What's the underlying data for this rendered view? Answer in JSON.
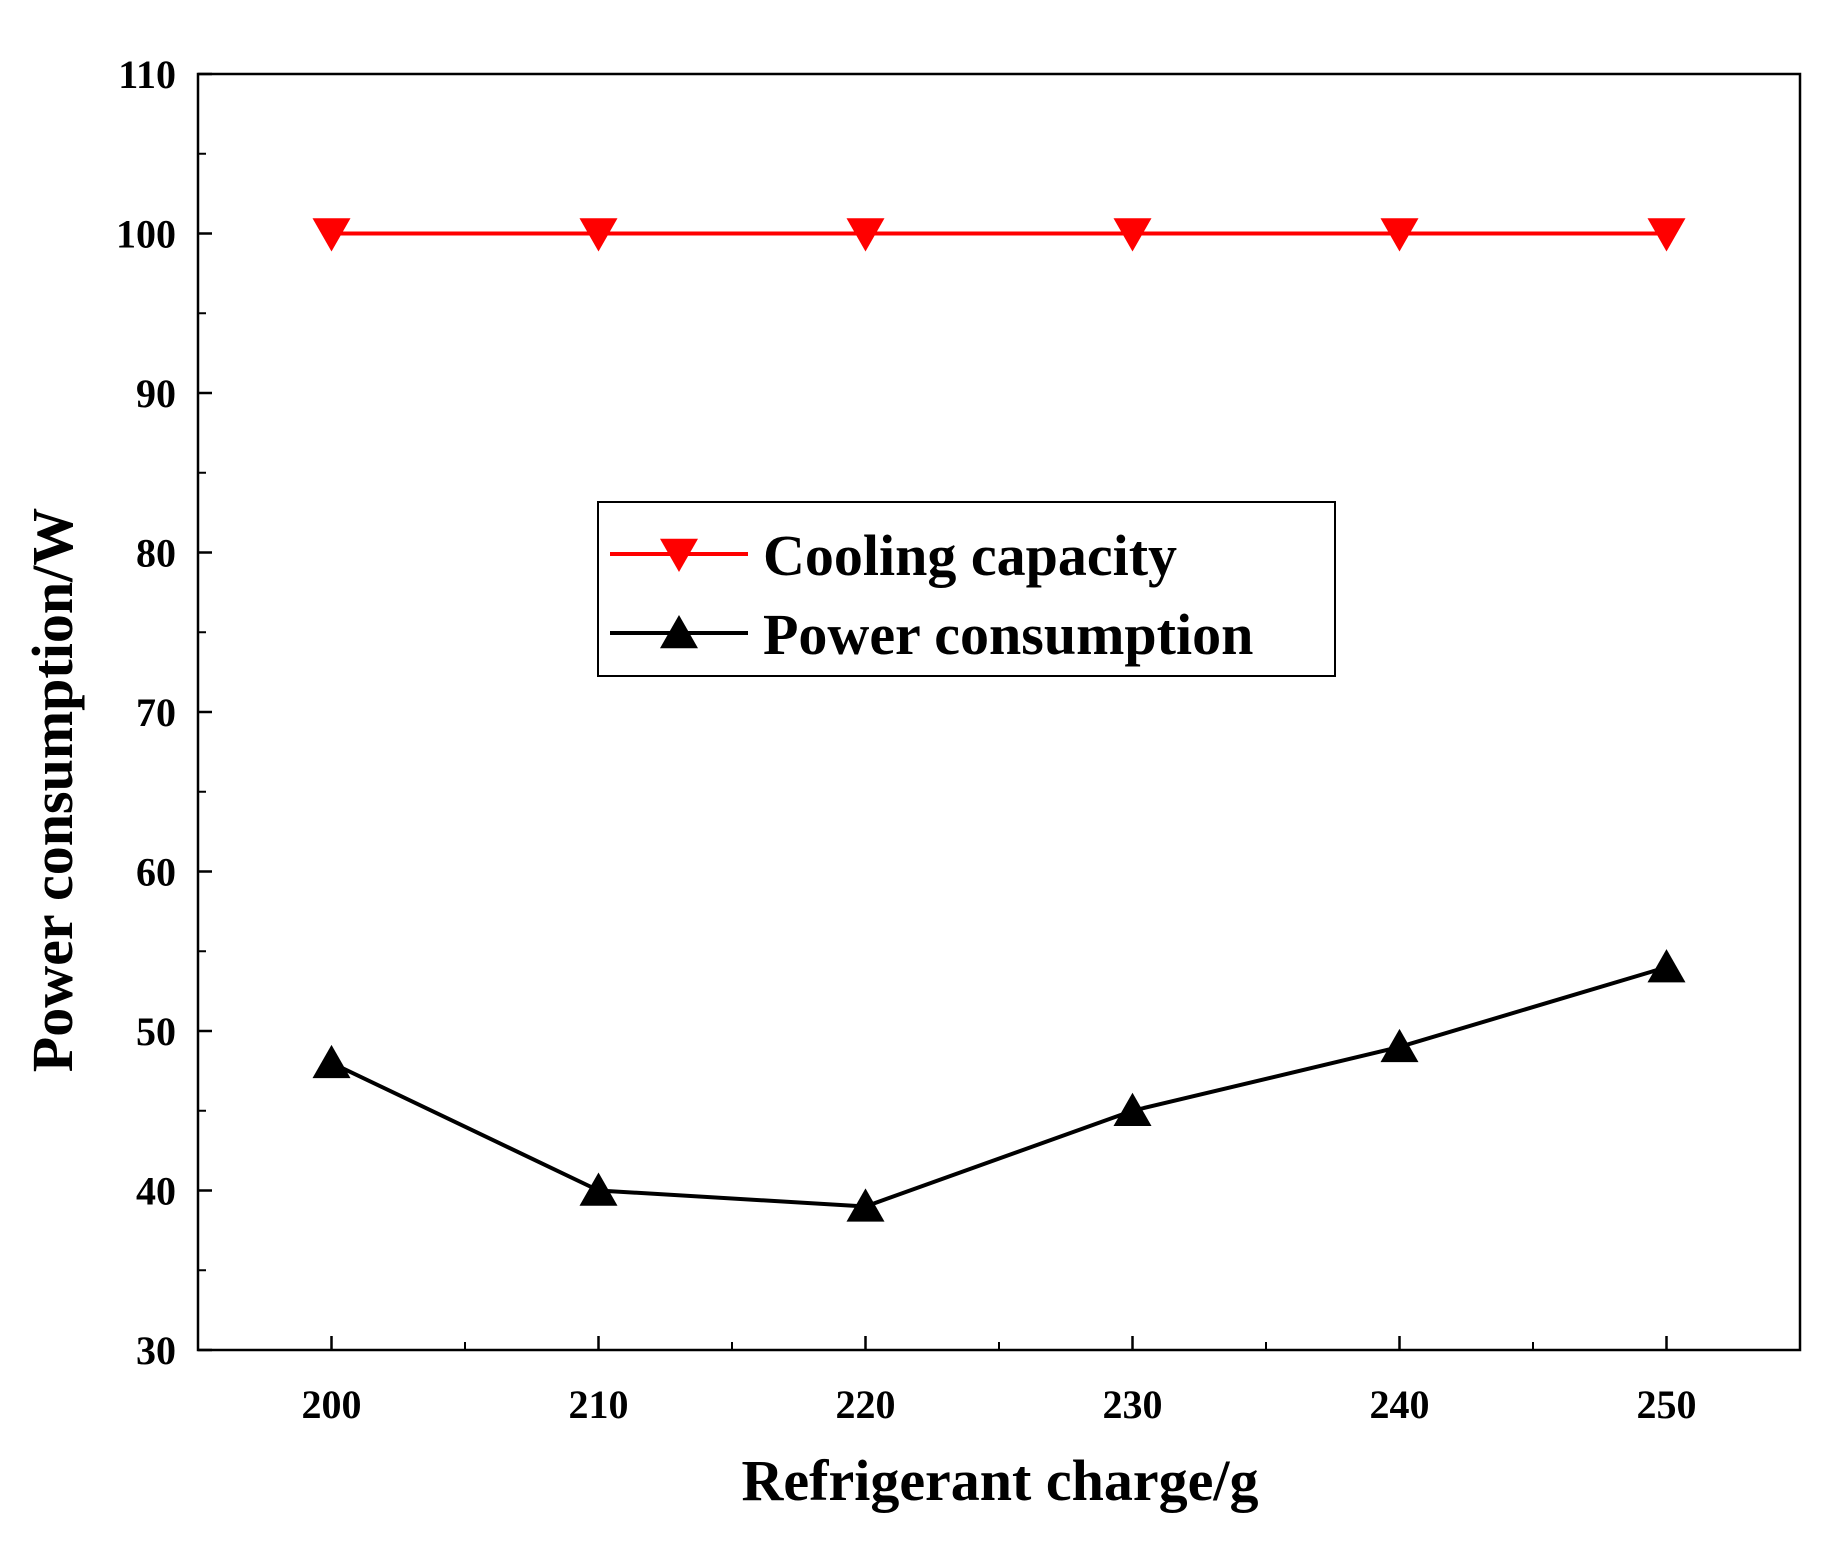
{
  "chart_data": {
    "type": "line",
    "title": "",
    "xlabel": "Refrigerant charge/g",
    "ylabel": "Power consumption/W",
    "x": [
      200,
      210,
      220,
      230,
      240,
      250
    ],
    "xlim": [
      195,
      255
    ],
    "ylim": [
      30,
      110
    ],
    "xticks": [
      "200",
      "210",
      "220",
      "230",
      "240",
      "250"
    ],
    "yticks": [
      "30",
      "40",
      "50",
      "60",
      "70",
      "80",
      "90",
      "100",
      "110"
    ],
    "grid": false,
    "legend_position": "center",
    "series": [
      {
        "name": "Cooling capacity",
        "values": [
          100,
          100,
          100,
          100,
          100,
          100
        ],
        "color": "#ff0000",
        "marker": "triangle-down"
      },
      {
        "name": "Power consumption",
        "values": [
          48,
          40,
          39,
          45,
          49,
          54
        ],
        "color": "#000000",
        "marker": "triangle-up"
      }
    ]
  }
}
